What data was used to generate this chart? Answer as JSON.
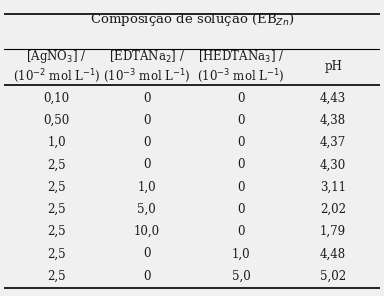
{
  "title": "Composição de solução (EB$_{Zn}$)",
  "col_headers": [
    "[AgNO$_3$] /\n(10$^{-2}$ mol L$^{-1}$)",
    "[EDTANa$_2$] /\n(10$^{-3}$ mol L$^{-1}$)",
    "[HEDTANa$_3$] /\n(10$^{-3}$ mol L$^{-1}$)",
    "pH"
  ],
  "rows": [
    [
      "0,10",
      "0",
      "0",
      "4,43"
    ],
    [
      "0,50",
      "0",
      "0",
      "4,38"
    ],
    [
      "1,0",
      "0",
      "0",
      "4,37"
    ],
    [
      "2,5",
      "0",
      "0",
      "4,30"
    ],
    [
      "2,5",
      "1,0",
      "0",
      "3,11"
    ],
    [
      "2,5",
      "5,0",
      "0",
      "2,02"
    ],
    [
      "2,5",
      "10,0",
      "0",
      "1,79"
    ],
    [
      "2,5",
      "0",
      "1,0",
      "4,48"
    ],
    [
      "2,5",
      "0",
      "5,0",
      "5,02"
    ]
  ],
  "bg_color": "#f0f0f0",
  "text_color": "#1a1a1a",
  "font_size": 8.5,
  "header_font_size": 8.5,
  "title_font_size": 9.5
}
